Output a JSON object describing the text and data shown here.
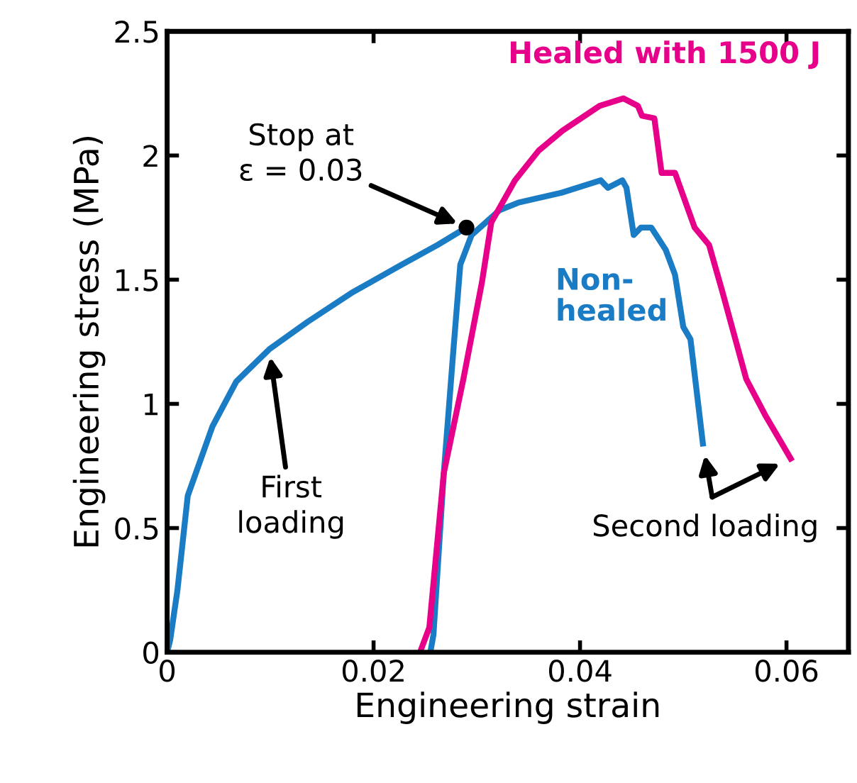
{
  "chart_data": {
    "type": "line",
    "xlabel": "Engineering strain",
    "ylabel": "Engineering stress (MPa)",
    "xlim": [
      0,
      0.066
    ],
    "xticks": [
      0,
      0.02,
      0.04,
      0.06
    ],
    "ylim": [
      0,
      2.5
    ],
    "yticks": [
      0,
      0.5,
      1,
      1.5,
      2,
      2.5
    ],
    "grid": false,
    "legend": false,
    "marker": "none",
    "line_style": "solid",
    "series": [
      {
        "color": "#1a7cc4",
        "x": [
          0,
          0.0003,
          0.001,
          0.002,
          0.0044,
          0.0067,
          0.0099,
          0.0136,
          0.018,
          0.0227,
          0.0262,
          0.029
        ],
        "values": [
          0,
          0.05,
          0.25,
          0.63,
          0.91,
          1.09,
          1.22,
          1.33,
          1.45,
          1.56,
          1.64,
          1.71
        ]
      },
      {
        "name": "Non-\nhealed",
        "color": "#1a7cc4",
        "x": [
          0.0255,
          0.0258,
          0.0268,
          0.0277,
          0.0284,
          0.0295,
          0.0322,
          0.034,
          0.0382,
          0.042,
          0.0427,
          0.0441,
          0.0445,
          0.0452,
          0.0459,
          0.0469,
          0.0483,
          0.0492,
          0.05,
          0.0507,
          0.0519
        ],
        "values": [
          0,
          0.07,
          0.72,
          1.2,
          1.56,
          1.68,
          1.78,
          1.81,
          1.85,
          1.9,
          1.87,
          1.9,
          1.87,
          1.68,
          1.71,
          1.71,
          1.62,
          1.52,
          1.31,
          1.26,
          0.84
        ]
      },
      {
        "name": "Healed with 1500 J",
        "color": "#e6008a",
        "x": [
          0.0245,
          0.0254,
          0.0268,
          0.0287,
          0.0305,
          0.0314,
          0.0337,
          0.036,
          0.0383,
          0.0419,
          0.0442,
          0.0456,
          0.046,
          0.0472,
          0.0479,
          0.0492,
          0.0511,
          0.0525,
          0.0538,
          0.0561,
          0.058,
          0.0604
        ],
        "values": [
          0,
          0.1,
          0.72,
          1.1,
          1.49,
          1.73,
          1.9,
          2.02,
          2.1,
          2.2,
          2.23,
          2.2,
          2.16,
          2.15,
          1.93,
          1.93,
          1.71,
          1.64,
          1.45,
          1.1,
          0.95,
          0.78
        ]
      }
    ],
    "annotations": [
      "Stop at\nε = 0.03",
      "First\nloading",
      "Second loading"
    ]
  }
}
